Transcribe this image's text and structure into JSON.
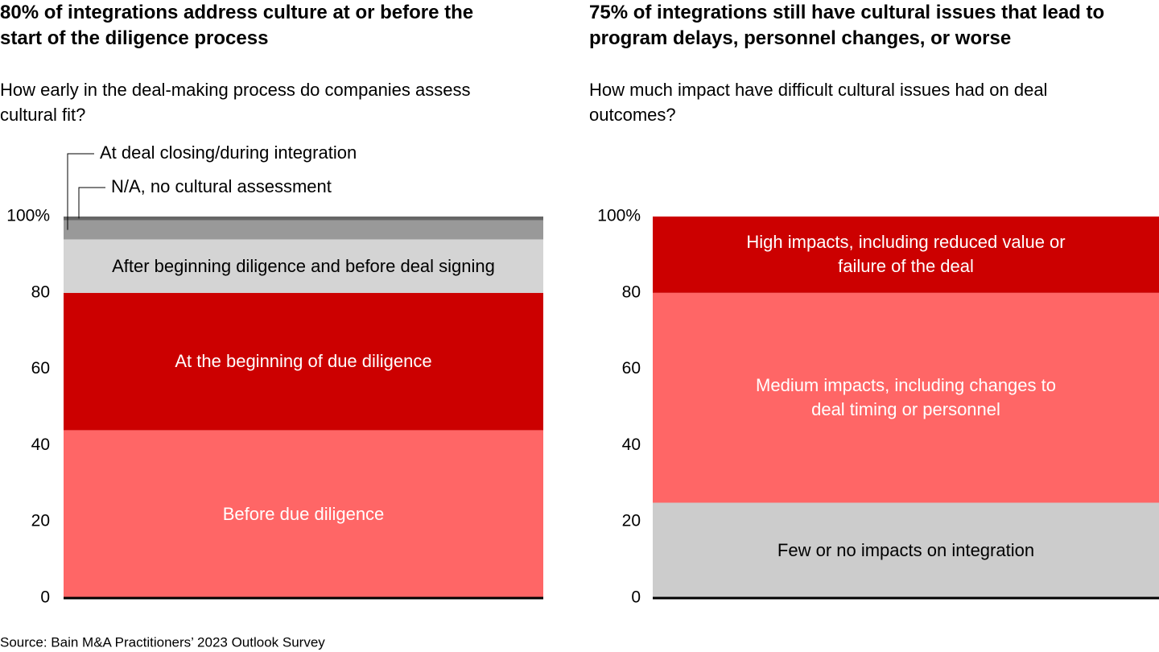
{
  "chart_data": [
    {
      "type": "stacked_bar",
      "title": "80% of integrations address culture at or before the start of the diligence process",
      "subtitle": "How early in the deal-making process do companies assess cultural fit?",
      "categories": [
        null
      ],
      "series": [
        {
          "name": "Before due diligence",
          "color": "#ff6666",
          "values": [
            44
          ]
        },
        {
          "name": "At the beginning of due diligence",
          "color": "#cc0000",
          "values": [
            36
          ]
        },
        {
          "name": "After beginning diligence and before deal signing",
          "color": "#d4d4d4",
          "values": [
            14
          ]
        },
        {
          "name": "At deal closing/during integration",
          "color": "#999999",
          "values": [
            5
          ]
        },
        {
          "name": "N/A, no cultural assessment",
          "color": "#666666",
          "values": [
            1
          ]
        }
      ],
      "ylim": [
        0,
        100
      ],
      "yticks": [
        0,
        20,
        40,
        60,
        80,
        {
          "value": 100,
          "label": "100%"
        }
      ]
    },
    {
      "type": "stacked_bar",
      "title": "75% of integrations still have cultural issues that lead to program delays, personnel changes, or worse",
      "subtitle": "How much impact have difficult cultural issues had on deal outcomes?",
      "categories": [
        null
      ],
      "series": [
        {
          "name": "Few or no impacts on integration",
          "color": "#cccccc",
          "values": [
            25
          ]
        },
        {
          "name": "Medium impacts, including changes to deal timing or personnel",
          "color": "#ff6666",
          "values": [
            55
          ]
        },
        {
          "name": "High impacts, including reduced value or failure of the deal",
          "color": "#cc0000",
          "values": [
            20
          ]
        }
      ],
      "ylim": [
        0,
        100
      ],
      "yticks": [
        0,
        20,
        40,
        60,
        80,
        {
          "value": 100,
          "label": "100%"
        }
      ]
    }
  ],
  "source": "Source: Bain M&A Practitioners’ 2023 Outlook Survey"
}
